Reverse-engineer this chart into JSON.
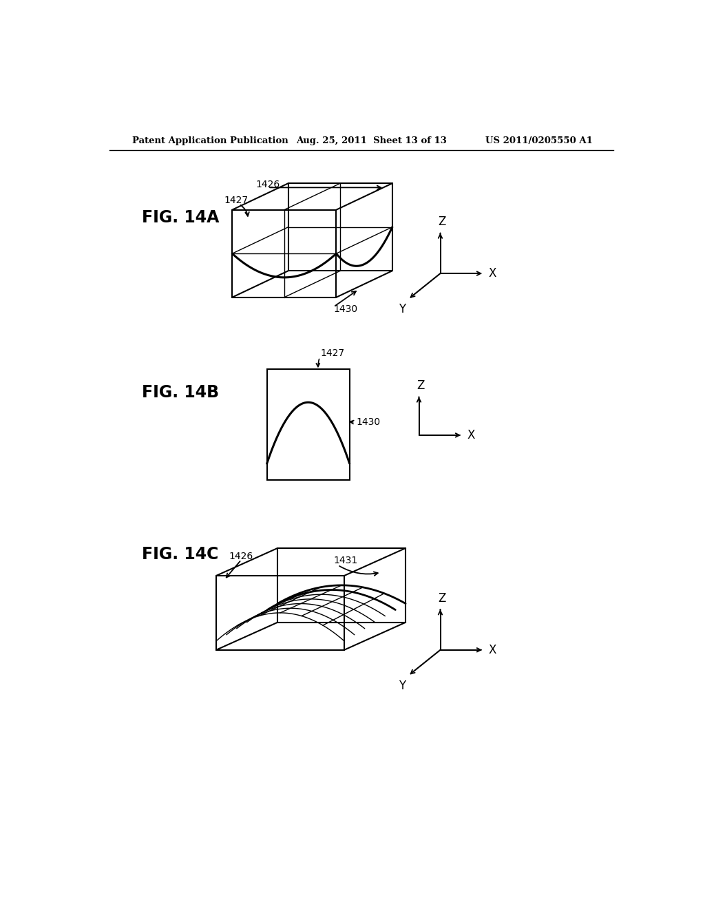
{
  "bg_color": "#ffffff",
  "text_color": "#000000",
  "line_color": "#000000",
  "header_left": "Patent Application Publication",
  "header_center": "Aug. 25, 2011  Sheet 13 of 13",
  "header_right": "US 2011/0205550 A1",
  "fig14a_label": "FIG. 14A",
  "fig14b_label": "FIG. 14B",
  "fig14c_label": "FIG. 14C",
  "label_1426": "1426",
  "label_1427": "1427",
  "label_1430": "1430",
  "label_1431": "1431"
}
